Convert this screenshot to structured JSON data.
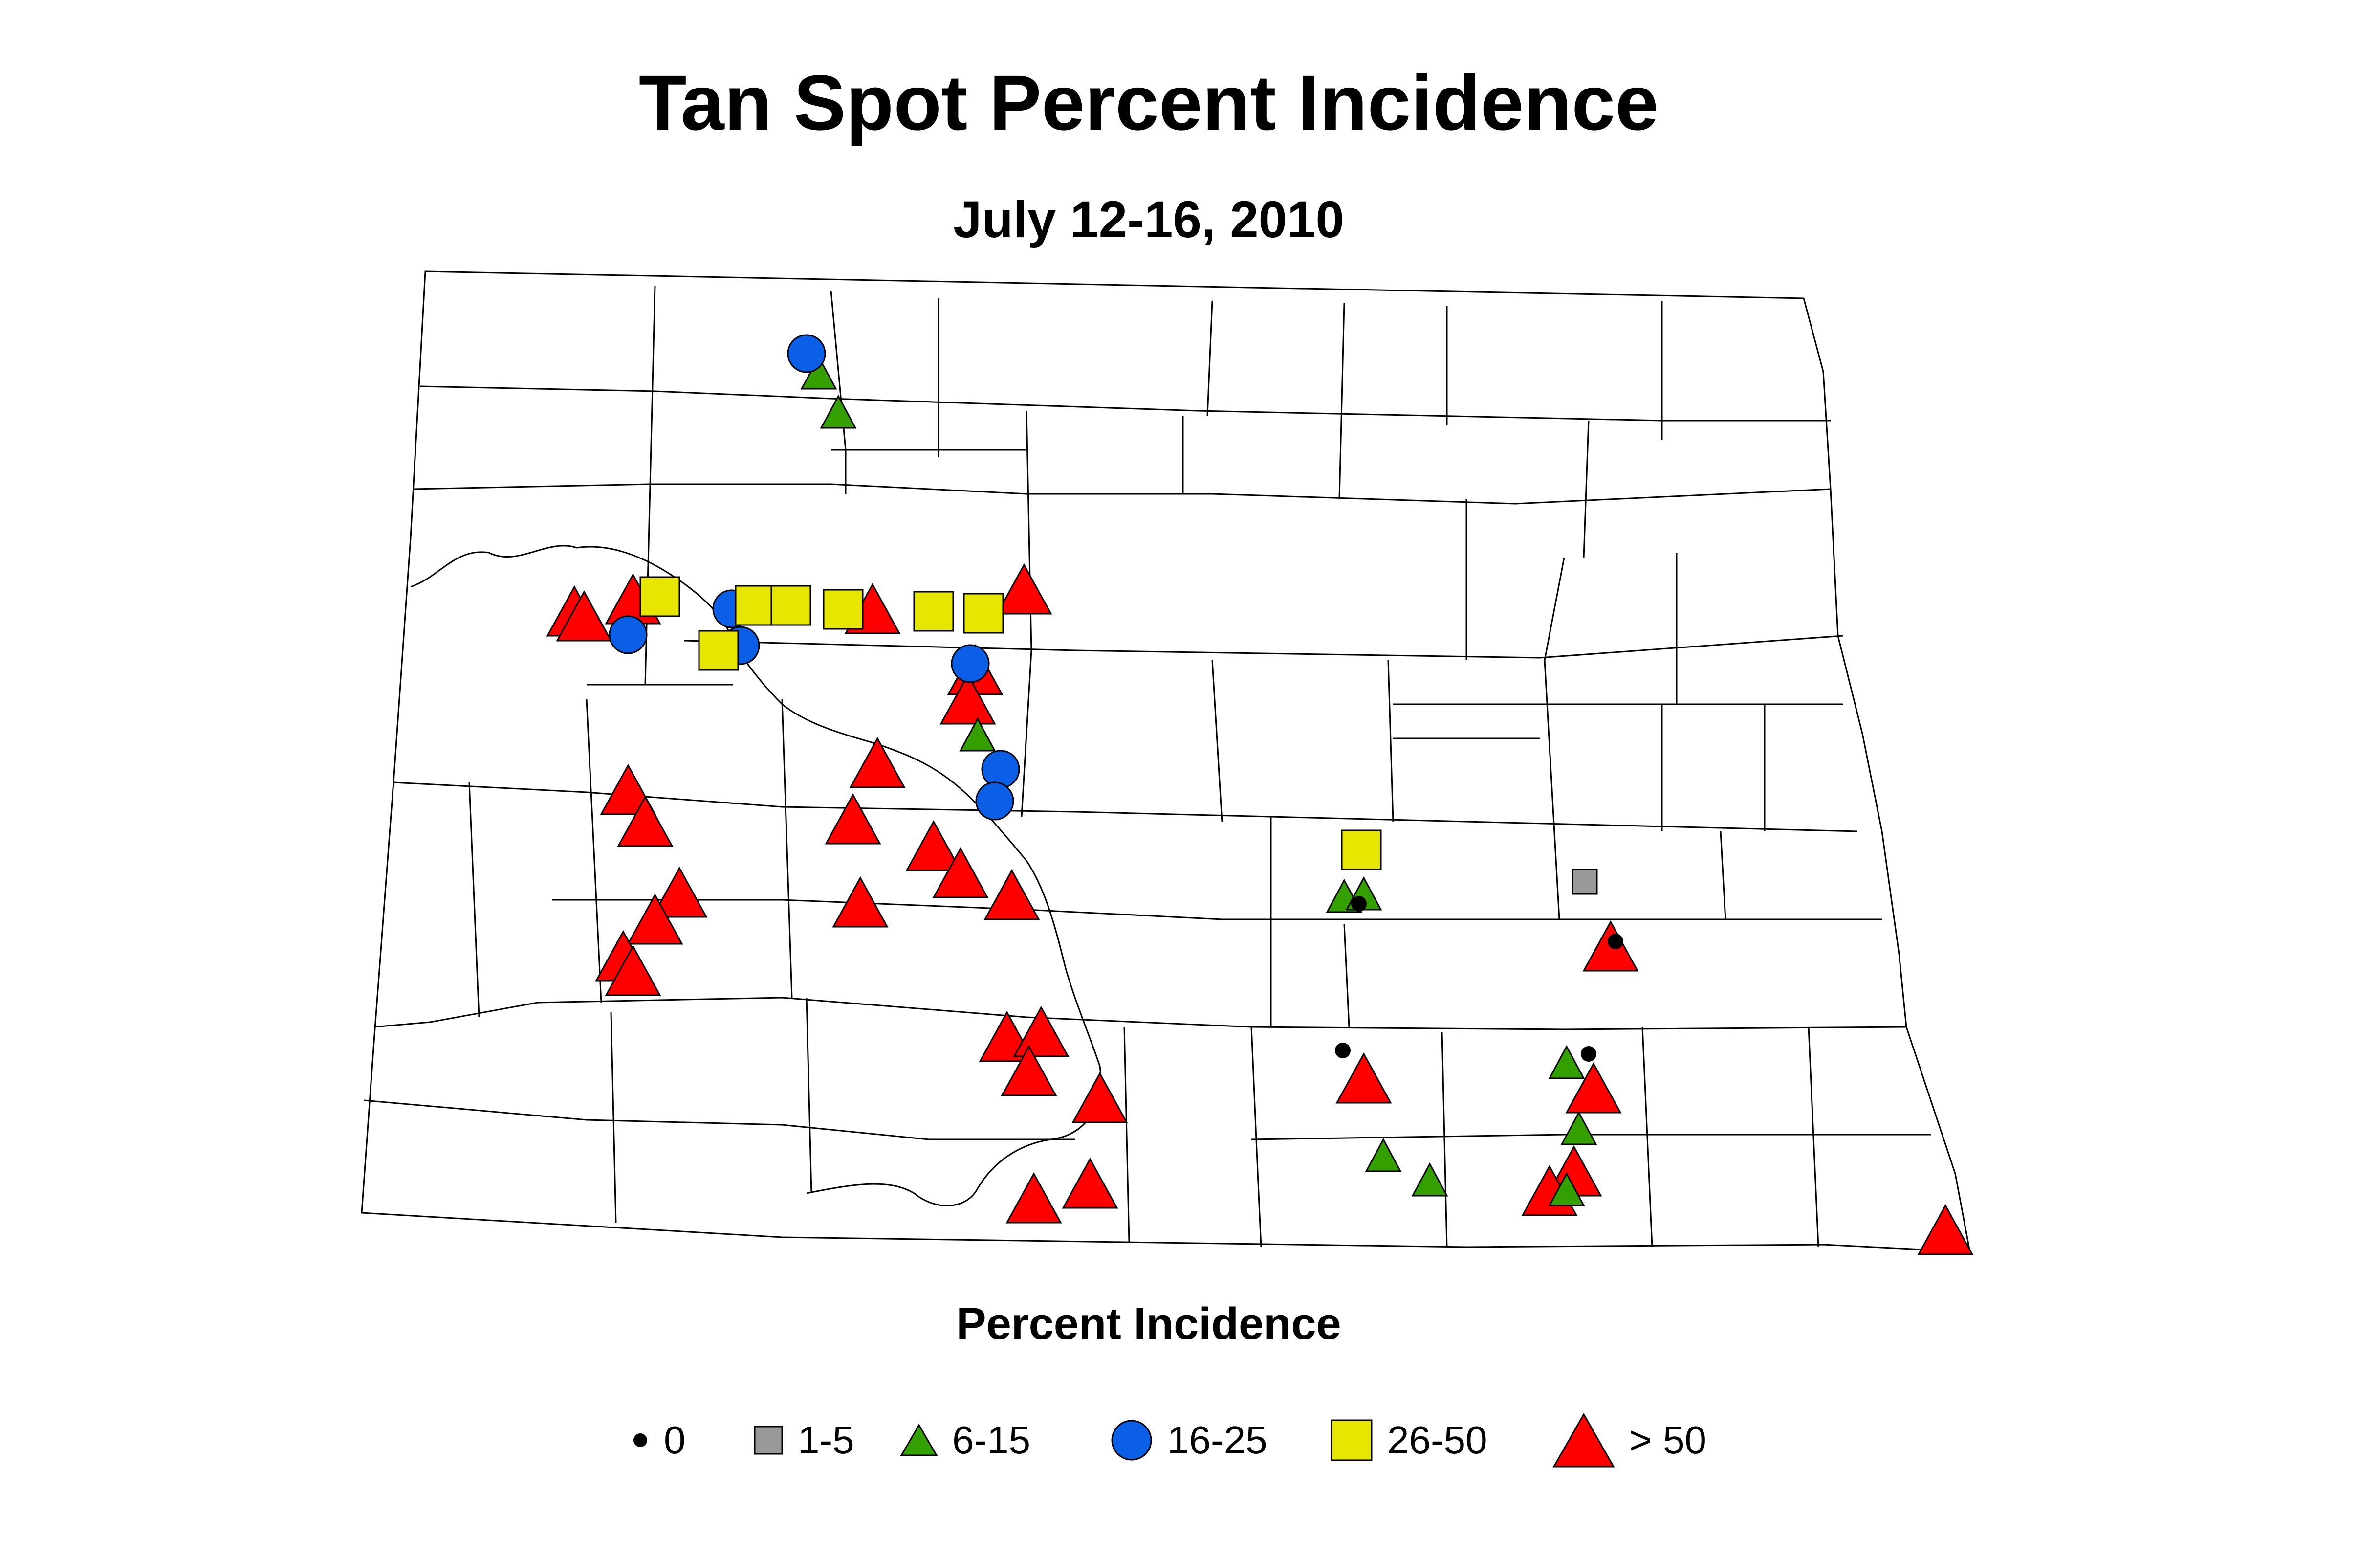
{
  "title": "Tan Spot Percent Incidence",
  "subtitle": "July 12-16, 2010",
  "legend": {
    "title": "Percent Incidence",
    "items": [
      {
        "label": "0",
        "symbol": "dot",
        "color": "#000000"
      },
      {
        "label": "1-5",
        "symbol": "square",
        "color": "#999999"
      },
      {
        "label": "6-15",
        "symbol": "triangle",
        "color": "#33A000"
      },
      {
        "label": "16-25",
        "symbol": "circle",
        "color": "#0A5FE6"
      },
      {
        "label": "26-50",
        "symbol": "square",
        "color": "#E6E600"
      },
      {
        "label": "> 50",
        "symbol": "triangle",
        "color": "#FF0000"
      }
    ]
  },
  "colors": {
    "outline": "#000000",
    "background": "#ffffff"
  }
}
